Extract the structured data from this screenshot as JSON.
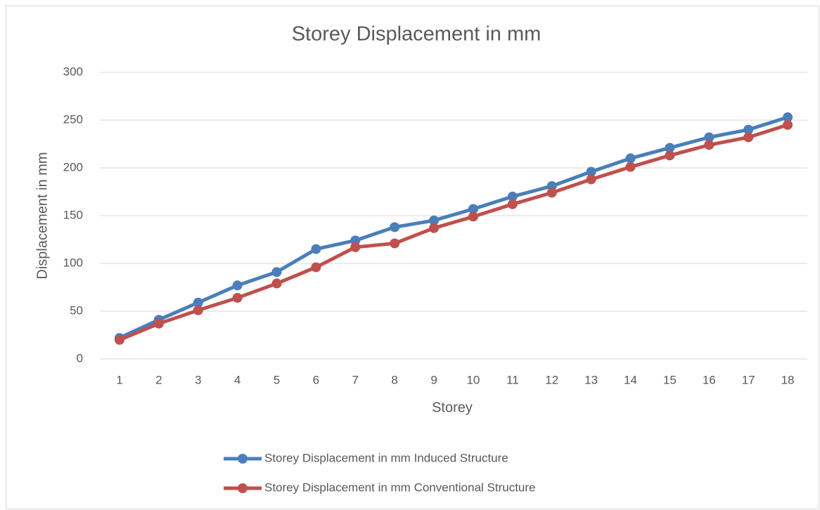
{
  "chart_data": {
    "type": "line",
    "title": "Storey Displacement in mm",
    "x_label": "Storey",
    "y_label": "Displacement in mm",
    "categories": [
      1,
      2,
      3,
      4,
      5,
      6,
      7,
      8,
      9,
      10,
      11,
      12,
      13,
      14,
      15,
      16,
      17,
      18
    ],
    "series": [
      {
        "name": "Storey Displacement in mm Induced Structure",
        "color": "#4a7ebb",
        "values": [
          22,
          41,
          59,
          77,
          91,
          115,
          124,
          138,
          145,
          157,
          170,
          181,
          196,
          210,
          221,
          232,
          240,
          253
        ]
      },
      {
        "name": "Storey Displacement in mm Conventional Structure",
        "color": "#c0504d",
        "values": [
          20,
          37,
          51,
          64,
          79,
          96,
          117,
          121,
          137,
          149,
          162,
          174,
          188,
          201,
          213,
          224,
          232,
          245
        ]
      }
    ],
    "ylim": [
      0,
      300
    ],
    "yticks": [
      0,
      50,
      100,
      150,
      200,
      250,
      300
    ],
    "grid": true,
    "legend": "bottom"
  }
}
